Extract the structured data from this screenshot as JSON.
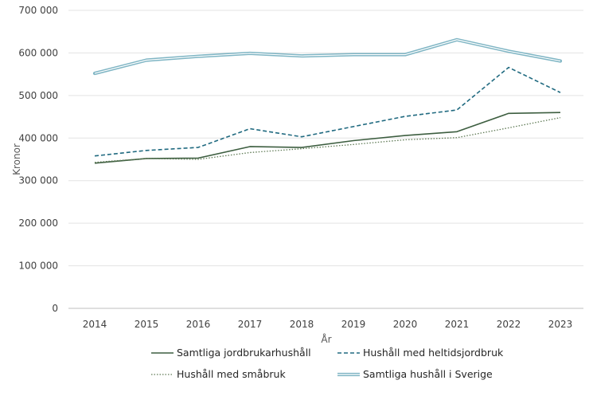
{
  "chart_data": {
    "type": "line",
    "title": "",
    "xlabel": "År",
    "ylabel": "Kronor",
    "categories": [
      "2014",
      "2015",
      "2016",
      "2017",
      "2018",
      "2019",
      "2020",
      "2021",
      "2022",
      "2023"
    ],
    "ylim": [
      0,
      700000
    ],
    "yticks": [
      0,
      100000,
      200000,
      300000,
      400000,
      500000,
      600000,
      700000
    ],
    "ytick_labels": [
      "0",
      "100 000",
      "200 000",
      "300 000",
      "400 000",
      "500 000",
      "600 000",
      "700 000"
    ],
    "grid": true,
    "legend_position": "bottom",
    "series": [
      {
        "key": "samtliga-jordbrukarhushall",
        "name": "Samtliga jordbrukarhushåll",
        "color": "#3d5e40",
        "style": "solid",
        "values": [
          341000,
          352000,
          353000,
          380000,
          378000,
          394000,
          406000,
          415000,
          458000,
          460000
        ]
      },
      {
        "key": "hushall-med-heltidsjordbruk",
        "name": "Hushåll med heltidsjordbruk",
        "color": "#206a80",
        "style": "dashed",
        "values": [
          358000,
          371000,
          378000,
          422000,
          403000,
          427000,
          451000,
          466000,
          566000,
          507000
        ]
      },
      {
        "key": "hushall-med-smabruk",
        "name": "Hushåll med småbruk",
        "color": "#5f7a55",
        "style": "dotted",
        "values": [
          343000,
          352000,
          350000,
          366000,
          375000,
          385000,
          396000,
          401000,
          424000,
          448000
        ]
      },
      {
        "key": "samtliga-hushall-i-sverige",
        "name": "Samtliga hushåll i Sverige",
        "color": "#7fb5c4",
        "style": "double",
        "values": [
          552000,
          583000,
          592000,
          599000,
          593000,
          596000,
          596000,
          631000,
          604000,
          581000
        ]
      }
    ]
  }
}
